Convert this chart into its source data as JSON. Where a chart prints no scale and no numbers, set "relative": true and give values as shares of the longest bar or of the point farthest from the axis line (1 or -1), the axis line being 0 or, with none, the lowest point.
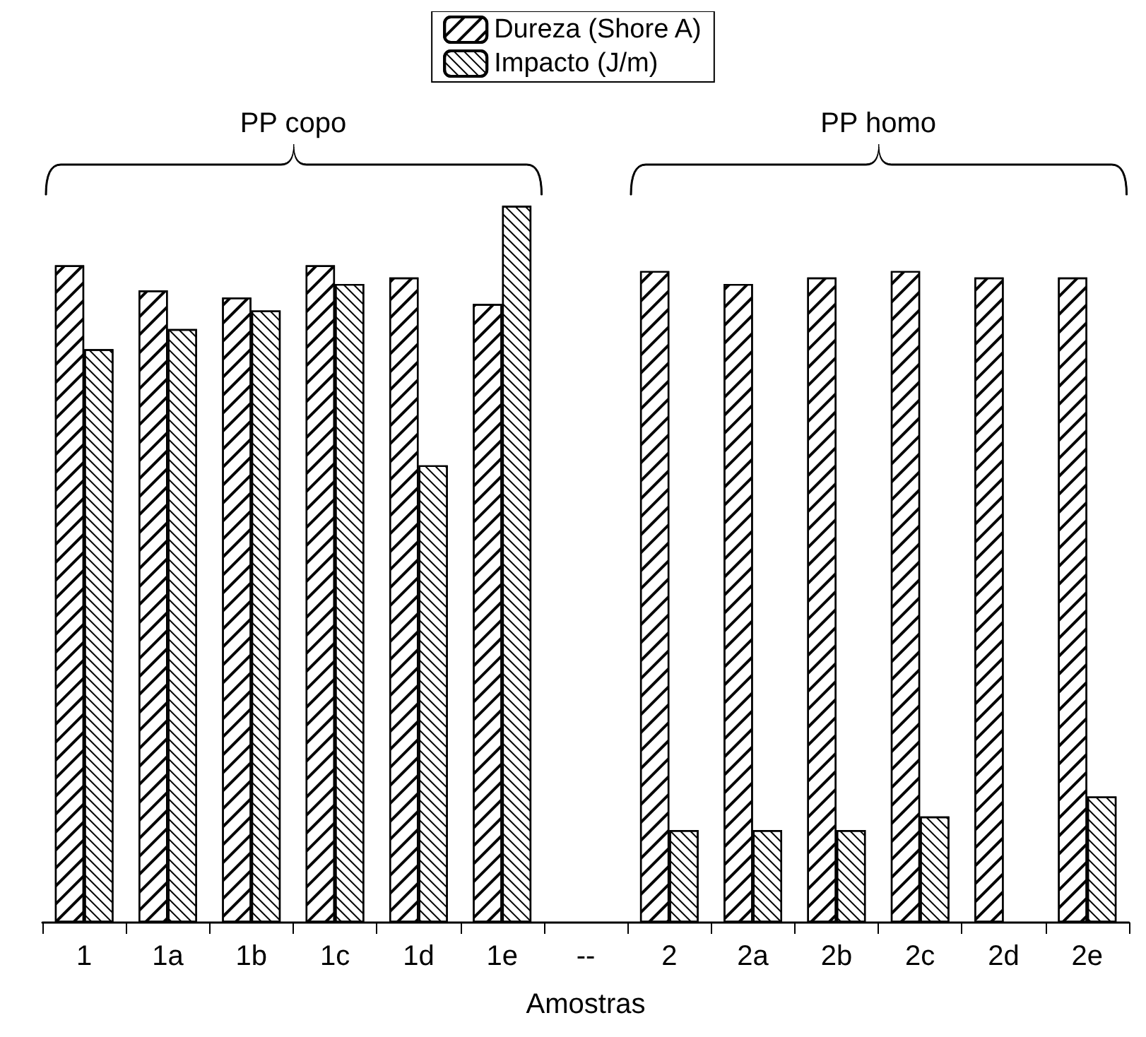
{
  "chart_data": {
    "type": "bar",
    "relative": true,
    "xlabel": "Amostras",
    "categories": [
      "1",
      "1a",
      "1b",
      "1c",
      "1d",
      "1e",
      "--",
      "2",
      "2a",
      "2b",
      "2c",
      "2d",
      "2e"
    ],
    "series": [
      {
        "name": "Dureza (Shore A)",
        "color": "#000000",
        "values": [
          0.917,
          0.882,
          0.872,
          0.917,
          0.9,
          0.863,
          null,
          0.909,
          0.891,
          0.9,
          0.909,
          0.9,
          0.9
        ]
      },
      {
        "name": "Impacto (J/m)",
        "color": "#000000",
        "values": [
          0.8,
          0.828,
          0.854,
          0.891,
          0.638,
          1,
          null,
          0.129,
          0.129,
          0.129,
          0.148,
          null,
          0.176
        ]
      }
    ],
    "annotations": [
      "PP copo",
      "PP homo"
    ],
    "legend": "top"
  }
}
